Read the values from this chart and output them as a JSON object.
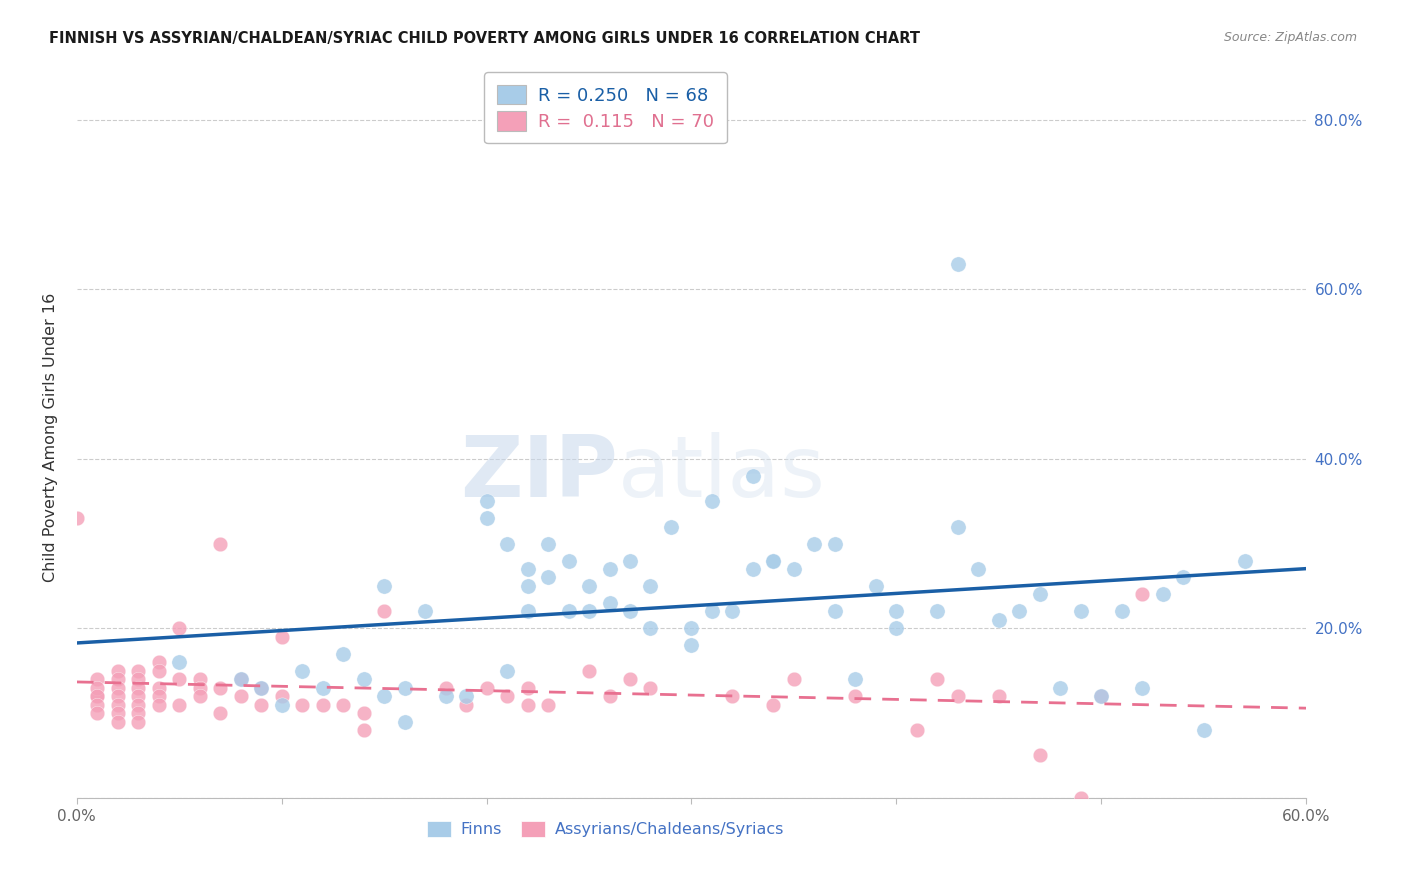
{
  "title": "FINNISH VS ASSYRIAN/CHALDEAN/SYRIAC CHILD POVERTY AMONG GIRLS UNDER 16 CORRELATION CHART",
  "source": "Source: ZipAtlas.com",
  "ylabel": "Child Poverty Among Girls Under 16",
  "xlim": [
    0.0,
    0.6
  ],
  "ylim": [
    0.0,
    0.85
  ],
  "xticks": [
    0.0,
    0.1,
    0.2,
    0.3,
    0.4,
    0.5,
    0.6
  ],
  "yticks": [
    0.0,
    0.2,
    0.4,
    0.6,
    0.8
  ],
  "xtick_labels": [
    "0.0%",
    "",
    "",
    "",
    "",
    "",
    "60.0%"
  ],
  "ytick_labels": [
    "",
    "20.0%",
    "40.0%",
    "60.0%",
    "80.0%"
  ],
  "legend_blue_r": "0.250",
  "legend_blue_n": "68",
  "legend_pink_r": "0.115",
  "legend_pink_n": "70",
  "blue_color": "#A8CCE8",
  "pink_color": "#F4A0B8",
  "blue_line_color": "#1A5FA6",
  "pink_line_color": "#E87090",
  "watermark_zip": "ZIP",
  "watermark_atlas": "atlas",
  "blue_scatter_x": [
    0.05,
    0.08,
    0.09,
    0.1,
    0.11,
    0.12,
    0.13,
    0.14,
    0.15,
    0.15,
    0.16,
    0.16,
    0.17,
    0.18,
    0.19,
    0.2,
    0.2,
    0.21,
    0.21,
    0.22,
    0.22,
    0.22,
    0.23,
    0.23,
    0.24,
    0.24,
    0.25,
    0.25,
    0.26,
    0.26,
    0.27,
    0.27,
    0.28,
    0.28,
    0.29,
    0.3,
    0.3,
    0.31,
    0.31,
    0.32,
    0.33,
    0.33,
    0.34,
    0.34,
    0.35,
    0.36,
    0.37,
    0.37,
    0.38,
    0.39,
    0.4,
    0.4,
    0.42,
    0.43,
    0.43,
    0.44,
    0.45,
    0.46,
    0.47,
    0.48,
    0.49,
    0.5,
    0.51,
    0.52,
    0.53,
    0.54,
    0.55,
    0.57
  ],
  "blue_scatter_y": [
    0.16,
    0.14,
    0.13,
    0.11,
    0.15,
    0.13,
    0.17,
    0.14,
    0.25,
    0.12,
    0.13,
    0.09,
    0.22,
    0.12,
    0.12,
    0.35,
    0.33,
    0.3,
    0.15,
    0.27,
    0.25,
    0.22,
    0.3,
    0.26,
    0.28,
    0.22,
    0.22,
    0.25,
    0.27,
    0.23,
    0.28,
    0.22,
    0.25,
    0.2,
    0.32,
    0.18,
    0.2,
    0.35,
    0.22,
    0.22,
    0.38,
    0.27,
    0.28,
    0.28,
    0.27,
    0.3,
    0.3,
    0.22,
    0.14,
    0.25,
    0.22,
    0.2,
    0.22,
    0.63,
    0.32,
    0.27,
    0.21,
    0.22,
    0.24,
    0.13,
    0.22,
    0.12,
    0.22,
    0.13,
    0.24,
    0.26,
    0.08,
    0.28
  ],
  "pink_scatter_x": [
    0.0,
    0.01,
    0.01,
    0.01,
    0.01,
    0.01,
    0.01,
    0.02,
    0.02,
    0.02,
    0.02,
    0.02,
    0.02,
    0.02,
    0.03,
    0.03,
    0.03,
    0.03,
    0.03,
    0.03,
    0.03,
    0.04,
    0.04,
    0.04,
    0.04,
    0.04,
    0.05,
    0.05,
    0.05,
    0.06,
    0.06,
    0.06,
    0.07,
    0.07,
    0.07,
    0.08,
    0.08,
    0.09,
    0.09,
    0.1,
    0.1,
    0.11,
    0.12,
    0.13,
    0.14,
    0.14,
    0.15,
    0.18,
    0.19,
    0.2,
    0.21,
    0.22,
    0.22,
    0.23,
    0.25,
    0.26,
    0.27,
    0.28,
    0.32,
    0.34,
    0.35,
    0.38,
    0.41,
    0.42,
    0.43,
    0.45,
    0.47,
    0.49,
    0.5,
    0.52
  ],
  "pink_scatter_y": [
    0.33,
    0.14,
    0.12,
    0.13,
    0.12,
    0.11,
    0.1,
    0.15,
    0.14,
    0.13,
    0.12,
    0.11,
    0.1,
    0.09,
    0.15,
    0.14,
    0.13,
    0.12,
    0.11,
    0.1,
    0.09,
    0.16,
    0.15,
    0.13,
    0.12,
    0.11,
    0.2,
    0.14,
    0.11,
    0.14,
    0.13,
    0.12,
    0.3,
    0.13,
    0.1,
    0.14,
    0.12,
    0.13,
    0.11,
    0.19,
    0.12,
    0.11,
    0.11,
    0.11,
    0.1,
    0.08,
    0.22,
    0.13,
    0.11,
    0.13,
    0.12,
    0.11,
    0.13,
    0.11,
    0.15,
    0.12,
    0.14,
    0.13,
    0.12,
    0.11,
    0.14,
    0.12,
    0.08,
    0.14,
    0.12,
    0.12,
    0.05,
    0.0,
    0.12,
    0.24
  ]
}
